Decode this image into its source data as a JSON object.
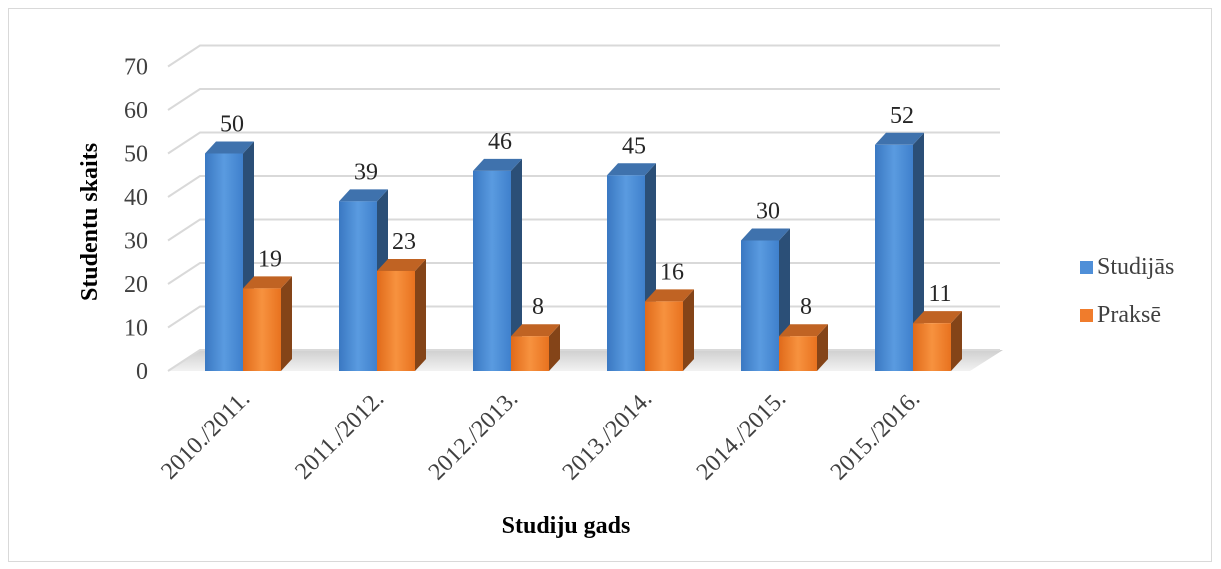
{
  "chart_data": {
    "type": "bar",
    "title": "",
    "xlabel": "Studiju gads",
    "ylabel": "Studentu skaits",
    "categories": [
      "2010./2011.",
      "2011./2012.",
      "2012./2013.",
      "2013./2014.",
      "2014./2015.",
      "2015./2016."
    ],
    "series": [
      {
        "name": "Studijās",
        "values": [
          50,
          39,
          46,
          45,
          30,
          52
        ]
      },
      {
        "name": "Praksē",
        "values": [
          19,
          23,
          8,
          16,
          8,
          11
        ]
      }
    ],
    "ylim": [
      0,
      70
    ],
    "yticks": [
      0,
      10,
      20,
      30,
      40,
      50,
      60,
      70
    ],
    "grid": true,
    "legend_position": "right",
    "style": "3d-clustered-column"
  },
  "colors": {
    "studijas": "#4f8fd8",
    "prakse": "#f07c2c",
    "grid": "#d9d9d9"
  }
}
